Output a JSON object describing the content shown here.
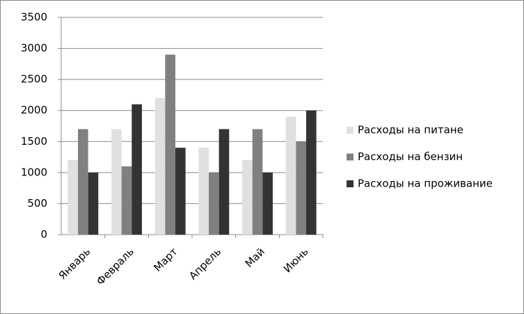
{
  "chart_data": {
    "type": "bar",
    "categories": [
      "Январь",
      "Февраль",
      "Март",
      "Апрель",
      "Май",
      "Июнь"
    ],
    "series": [
      {
        "name": "Расходы на питане",
        "color": "#e0e0e0",
        "values": [
          1200,
          1700,
          2200,
          1400,
          1200,
          1900
        ]
      },
      {
        "name": "Расходы на бензин",
        "color": "#808080",
        "values": [
          1700,
          1100,
          2900,
          1000,
          1700,
          1500
        ]
      },
      {
        "name": "Расходы на проживание",
        "color": "#333333",
        "values": [
          1000,
          2100,
          1400,
          1700,
          1000,
          2000
        ]
      }
    ],
    "ylim": [
      0,
      3500
    ],
    "yticks": [
      0,
      500,
      1000,
      1500,
      2000,
      2500,
      3000,
      3500
    ],
    "grid": true,
    "legend": "right"
  }
}
